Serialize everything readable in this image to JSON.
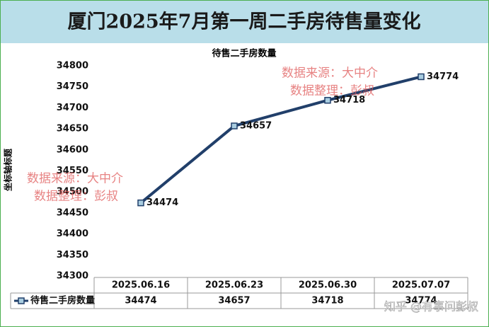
{
  "header": {
    "title": "厦门2025年7月第一周二手房待售量变化"
  },
  "chart_data": {
    "type": "line",
    "title": "待售二手房数量",
    "y_label": "坐标轴标题",
    "categories": [
      "2025.06.16",
      "2025.06.23",
      "2025.06.30",
      "2025.07.07"
    ],
    "series": [
      {
        "name": "待售二手房数量",
        "color": "#213f6a",
        "values": [
          34474,
          34657,
          34718,
          34774
        ]
      }
    ],
    "ylim": [
      34300,
      34800
    ],
    "yticks": [
      34300,
      34350,
      34400,
      34450,
      34500,
      34550,
      34600,
      34650,
      34700,
      34750,
      34800
    ]
  },
  "watermarks": [
    [
      "数据来源：大中介",
      "数据整理：彭叔"
    ],
    [
      "数据来源：大中介",
      "数据整理：彭叔"
    ]
  ],
  "footer": "知乎 @有事问彭叔"
}
